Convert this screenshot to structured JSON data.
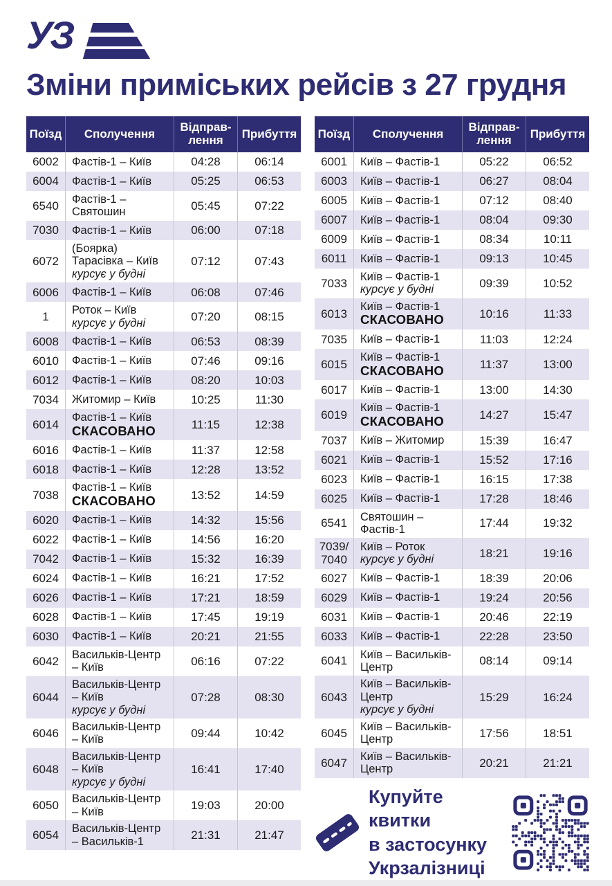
{
  "brand": {
    "logo_text": "УЗ"
  },
  "page": {
    "title": "Зміни приміських рейсів з 27 грудня"
  },
  "colors": {
    "navy": "#2e2c72",
    "row_stripe": "#e4e2f0",
    "body_text": "#1b1b1b",
    "footer_bar": "#ececee"
  },
  "labels": {
    "cancelled": "СКАСОВАНО",
    "weekdays_note": "курсує у будні"
  },
  "table_headers": {
    "train": "Поїзд",
    "route": "Сполучення",
    "departure": "Відправ-\nлення",
    "arrival": "Прибуття"
  },
  "left_table": {
    "rows": [
      {
        "train": "6002",
        "route": "Фастів-1 – Київ",
        "departure": "04:28",
        "arrival": "06:14"
      },
      {
        "train": "6004",
        "route": "Фастів-1 – Київ",
        "departure": "05:25",
        "arrival": "06:53"
      },
      {
        "train": "6540",
        "route": "Фастів-1 – Святошин",
        "departure": "05:45",
        "arrival": "07:22"
      },
      {
        "train": "7030",
        "route": "Фастів-1 – Київ",
        "departure": "06:00",
        "arrival": "07:18"
      },
      {
        "train": "6072",
        "route": "(Боярка) Тарасівка – Київ",
        "weekdays": true,
        "departure": "07:12",
        "arrival": "07:43"
      },
      {
        "train": "6006",
        "route": "Фастів-1 – Київ",
        "departure": "06:08",
        "arrival": "07:46"
      },
      {
        "train": "1",
        "route": "Роток – Київ",
        "weekdays": true,
        "departure": "07:20",
        "arrival": "08:15"
      },
      {
        "train": "6008",
        "route": "Фастів-1 – Київ",
        "departure": "06:53",
        "arrival": "08:39"
      },
      {
        "train": "6010",
        "route": "Фастів-1 – Київ",
        "departure": "07:46",
        "arrival": "09:16"
      },
      {
        "train": "6012",
        "route": "Фастів-1 – Київ",
        "departure": "08:20",
        "arrival": "10:03"
      },
      {
        "train": "7034",
        "route": "Житомир – Київ",
        "departure": "10:25",
        "arrival": "11:30"
      },
      {
        "train": "6014",
        "route": "Фастів-1 – Київ",
        "cancelled": true,
        "departure": "11:15",
        "arrival": "12:38"
      },
      {
        "train": "6016",
        "route": "Фастів-1 – Київ",
        "departure": "11:37",
        "arrival": "12:58"
      },
      {
        "train": "6018",
        "route": "Фастів-1 – Київ",
        "departure": "12:28",
        "arrival": "13:52"
      },
      {
        "train": "7038",
        "route": "Фастів-1 – Київ",
        "cancelled": true,
        "departure": "13:52",
        "arrival": "14:59"
      },
      {
        "train": "6020",
        "route": "Фастів-1 – Київ",
        "departure": "14:32",
        "arrival": "15:56"
      },
      {
        "train": "6022",
        "route": "Фастів-1 – Київ",
        "departure": "14:56",
        "arrival": "16:20"
      },
      {
        "train": "7042",
        "route": "Фастів-1 – Київ",
        "departure": "15:32",
        "arrival": "16:39"
      },
      {
        "train": "6024",
        "route": "Фастів-1 – Київ",
        "departure": "16:21",
        "arrival": "17:52"
      },
      {
        "train": "6026",
        "route": "Фастів-1 – Київ",
        "departure": "17:21",
        "arrival": "18:59"
      },
      {
        "train": "6028",
        "route": "Фастів-1 – Київ",
        "departure": "17:45",
        "arrival": "19:19"
      },
      {
        "train": "6030",
        "route": "Фастів-1 – Київ",
        "departure": "20:21",
        "arrival": "21:55"
      },
      {
        "train": "6042",
        "route": "Васильків-Центр – Київ",
        "departure": "06:16",
        "arrival": "07:22"
      },
      {
        "train": "6044",
        "route": "Васильків-Центр – Київ",
        "weekdays": true,
        "departure": "07:28",
        "arrival": "08:30"
      },
      {
        "train": "6046",
        "route": "Васильків-Центр – Київ",
        "departure": "09:44",
        "arrival": "10:42"
      },
      {
        "train": "6048",
        "route": "Васильків-Центр – Київ",
        "weekdays": true,
        "departure": "16:41",
        "arrival": "17:40"
      },
      {
        "train": "6050",
        "route": "Васильків-Центр – Київ",
        "departure": "19:03",
        "arrival": "20:00"
      },
      {
        "train": "6054",
        "route": "Васильків-Центр – Васильків-1",
        "departure": "21:31",
        "arrival": "21:47"
      }
    ]
  },
  "right_table": {
    "rows": [
      {
        "train": "6001",
        "route": "Київ – Фастів-1",
        "departure": "05:22",
        "arrival": "06:52"
      },
      {
        "train": "6003",
        "route": "Київ – Фастів-1",
        "departure": "06:27",
        "arrival": "08:04"
      },
      {
        "train": "6005",
        "route": "Київ – Фастів-1",
        "departure": "07:12",
        "arrival": "08:40"
      },
      {
        "train": "6007",
        "route": "Київ – Фастів-1",
        "departure": "08:04",
        "arrival": "09:30"
      },
      {
        "train": "6009",
        "route": "Київ – Фастів-1",
        "departure": "08:34",
        "arrival": "10:11"
      },
      {
        "train": "6011",
        "route": "Київ – Фастів-1",
        "departure": "09:13",
        "arrival": "10:45"
      },
      {
        "train": "7033",
        "route": "Київ – Фастів-1",
        "weekdays": true,
        "departure": "09:39",
        "arrival": "10:52"
      },
      {
        "train": "6013",
        "route": "Київ – Фастів-1",
        "cancelled": true,
        "departure": "10:16",
        "arrival": "11:33"
      },
      {
        "train": "7035",
        "route": "Київ – Фастів-1",
        "departure": "11:03",
        "arrival": "12:24"
      },
      {
        "train": "6015",
        "route": "Київ – Фастів-1",
        "cancelled": true,
        "departure": "11:37",
        "arrival": "13:00"
      },
      {
        "train": "6017",
        "route": "Київ – Фастів-1",
        "departure": "13:00",
        "arrival": "14:30"
      },
      {
        "train": "6019",
        "route": "Київ – Фастів-1",
        "cancelled": true,
        "departure": "14:27",
        "arrival": "15:47"
      },
      {
        "train": "7037",
        "route": "Київ – Житомир",
        "departure": "15:39",
        "arrival": "16:47"
      },
      {
        "train": "6021",
        "route": "Київ – Фастів-1",
        "departure": "15:52",
        "arrival": "17:16"
      },
      {
        "train": "6023",
        "route": "Київ – Фастів-1",
        "departure": "16:15",
        "arrival": "17:38"
      },
      {
        "train": "6025",
        "route": "Київ – Фастів-1",
        "departure": "17:28",
        "arrival": "18:46"
      },
      {
        "train": "6541",
        "route": "Святошин – Фастів-1",
        "departure": "17:44",
        "arrival": "19:32"
      },
      {
        "train": "7039/\n7040",
        "route": "Київ – Роток",
        "weekdays": true,
        "departure": "18:21",
        "arrival": "19:16"
      },
      {
        "train": "6027",
        "route": "Київ – Фастів-1",
        "departure": "18:39",
        "arrival": "20:06"
      },
      {
        "train": "6029",
        "route": "Київ – Фастів-1",
        "departure": "19:24",
        "arrival": "20:56"
      },
      {
        "train": "6031",
        "route": "Київ – Фастів-1",
        "departure": "20:46",
        "arrival": "22:19"
      },
      {
        "train": "6033",
        "route": "Київ – Фастів-1",
        "departure": "22:28",
        "arrival": "23:50"
      },
      {
        "train": "6041",
        "route": "Київ – Васильків-Центр",
        "departure": "08:14",
        "arrival": "09:14"
      },
      {
        "train": "6043",
        "route": "Київ – Васильків-Центр",
        "weekdays": true,
        "departure": "15:29",
        "arrival": "16:24"
      },
      {
        "train": "6045",
        "route": "Київ – Васильків-Центр",
        "departure": "17:56",
        "arrival": "18:51"
      },
      {
        "train": "6047",
        "route": "Київ – Васильків-Центр",
        "departure": "20:21",
        "arrival": "21:21"
      }
    ]
  },
  "promo": {
    "lines": [
      "Купуйте квитки",
      "в застосунку",
      "Укрзалізниці"
    ]
  }
}
